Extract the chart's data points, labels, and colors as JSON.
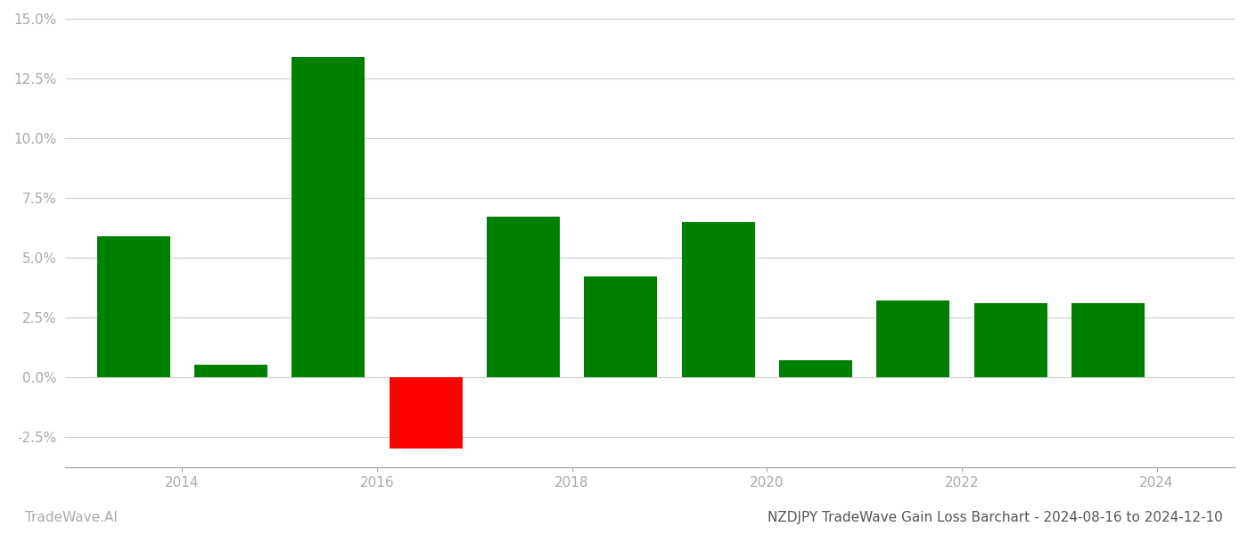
{
  "years": [
    2013.5,
    2014.5,
    2015.5,
    2016.5,
    2017.5,
    2018.5,
    2019.5,
    2020.5,
    2021.5,
    2022.5,
    2023.5
  ],
  "values": [
    0.059,
    0.005,
    0.134,
    -0.03,
    0.067,
    0.042,
    0.065,
    0.007,
    0.032,
    0.031,
    0.031
  ],
  "colors": [
    "#008000",
    "#008000",
    "#008000",
    "#ff0000",
    "#008000",
    "#008000",
    "#008000",
    "#008000",
    "#008000",
    "#008000",
    "#008000"
  ],
  "title": "NZDJPY TradeWave Gain Loss Barchart - 2024-08-16 to 2024-12-10",
  "watermark": "TradeWave.AI",
  "ylim_min": -0.038,
  "ylim_max": 0.152,
  "bar_width": 0.75,
  "background_color": "#ffffff",
  "grid_color": "#cccccc",
  "axis_label_color": "#aaaaaa",
  "title_color": "#555555",
  "watermark_color": "#aaaaaa",
  "title_fontsize": 11,
  "watermark_fontsize": 11,
  "tick_fontsize": 11,
  "xticks": [
    2014,
    2016,
    2018,
    2020,
    2022,
    2024
  ],
  "xlim_min": 2012.8,
  "xlim_max": 2024.8
}
